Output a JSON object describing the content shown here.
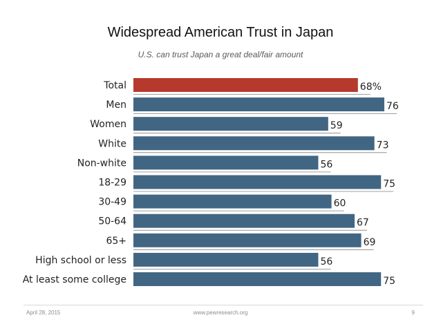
{
  "title": "Widespread American Trust in Japan",
  "subtitle": "U.S. can trust Japan a great deal/fair amount",
  "footer": {
    "date": "April 28, 2015",
    "url": "www.pewresearch.org",
    "page": "9"
  },
  "chart_data": {
    "type": "bar",
    "orientation": "horizontal",
    "title": "Widespread American Trust in Japan",
    "subtitle": "U.S. can trust Japan a great deal/fair amount",
    "categories": [
      "Total",
      "Men",
      "Women",
      "White",
      "Non-white",
      "18-29",
      "30-49",
      "50-64",
      "65+",
      "High school or less",
      "At least some college"
    ],
    "values": [
      68,
      76,
      59,
      73,
      56,
      75,
      60,
      67,
      69,
      56,
      75
    ],
    "value_labels": [
      "68%",
      "76",
      "59",
      "73",
      "56",
      "75",
      "60",
      "67",
      "69",
      "56",
      "75"
    ],
    "xlim": [
      0,
      76
    ],
    "colors": {
      "highlight": "#b5392c",
      "bar": "#416683",
      "separator": "#7f7f7f"
    },
    "highlight_index": 0,
    "xlabel": "",
    "ylabel": "",
    "grid": false,
    "legend": "none"
  }
}
